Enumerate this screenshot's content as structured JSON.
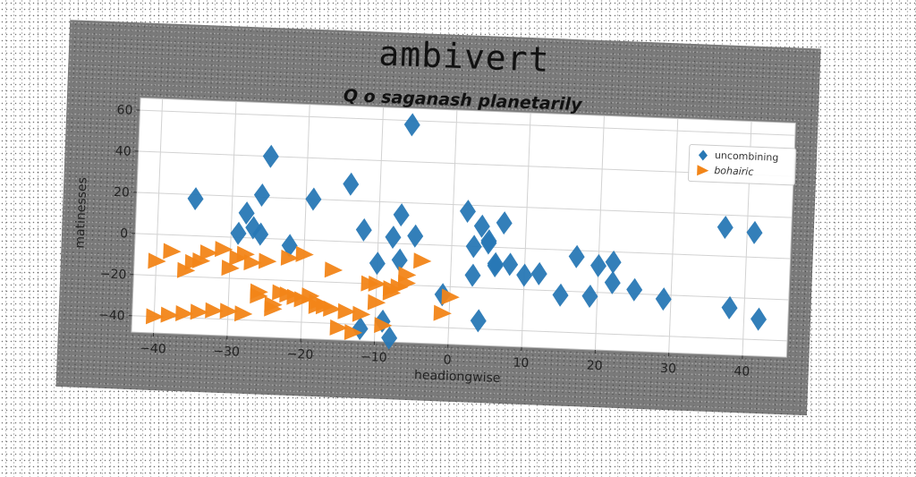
{
  "chart_data": {
    "type": "scatter",
    "suptitle": "ambivert",
    "title": "Q o saganash planetarily",
    "xlabel": "headiongwise",
    "ylabel": "matinesses",
    "xlim": [
      -43,
      46
    ],
    "ylim": [
      -48,
      66
    ],
    "xticks": [
      -40,
      -30,
      -20,
      -10,
      0,
      10,
      20,
      30,
      40
    ],
    "yticks": [
      -40,
      -20,
      0,
      20,
      40,
      60
    ],
    "grid": true,
    "legend_position": "top-right",
    "series": [
      {
        "name": "uncombining",
        "marker": "diamond",
        "color": "#2878b5",
        "x": [
          -35,
          -29,
          -28,
          -27,
          -26,
          -25,
          -26,
          -22,
          -19,
          -14,
          -12,
          -10,
          -9,
          -8,
          -7,
          -6,
          -5,
          -8,
          -7,
          2,
          3,
          4,
          5,
          6,
          7,
          4,
          3,
          5,
          6,
          8,
          10,
          12,
          15,
          17,
          19,
          20,
          22,
          22,
          25,
          29,
          37,
          38,
          41,
          42,
          -1,
          -12
        ],
        "y": [
          18,
          2,
          12,
          5,
          21,
          40,
          2,
          -3,
          20,
          28,
          6,
          -10,
          -38,
          -46,
          14,
          58,
          4,
          3,
          -8,
          17,
          -14,
          10,
          2,
          -9,
          12,
          -36,
          0,
          3,
          -8,
          -8,
          -13,
          -12,
          -22,
          -3,
          -22,
          -7,
          -5,
          -15,
          -18,
          -22,
          14,
          -25,
          12,
          -30,
          -24,
          -42
        ]
      },
      {
        "name": "bohairic",
        "marker": "triangle-right",
        "color": "#f28518",
        "x": [
          -40,
          -38,
          -36,
          -35,
          -34,
          -33,
          -31,
          -30,
          -29,
          -28,
          -27,
          -26,
          -25,
          -24,
          -23,
          -22,
          -21,
          -20,
          -19,
          -18,
          -17,
          -16,
          -15,
          -13,
          -11,
          -10,
          -9,
          -8,
          -7,
          -6,
          -4,
          -1,
          0,
          -40,
          -38,
          -36,
          -34,
          -32,
          -30,
          -28,
          -26,
          -24,
          -22,
          -20,
          -18,
          -16,
          -14,
          -12,
          -10,
          -8,
          -6
        ],
        "y": [
          -13,
          -8,
          -17,
          -13,
          -12,
          -8,
          -6,
          -15,
          -10,
          -8,
          -12,
          -28,
          -11,
          -32,
          -26,
          -9,
          -28,
          -7,
          -27,
          -30,
          -32,
          -14,
          -42,
          -44,
          -20,
          -20,
          -40,
          -22,
          -21,
          -15,
          -8,
          -33,
          -25,
          -40,
          -39,
          -38,
          -37,
          -36,
          -36,
          -37,
          -26,
          -34,
          -27,
          -29,
          -32,
          -33,
          -34,
          -35,
          -29,
          -24,
          -19
        ]
      }
    ]
  }
}
